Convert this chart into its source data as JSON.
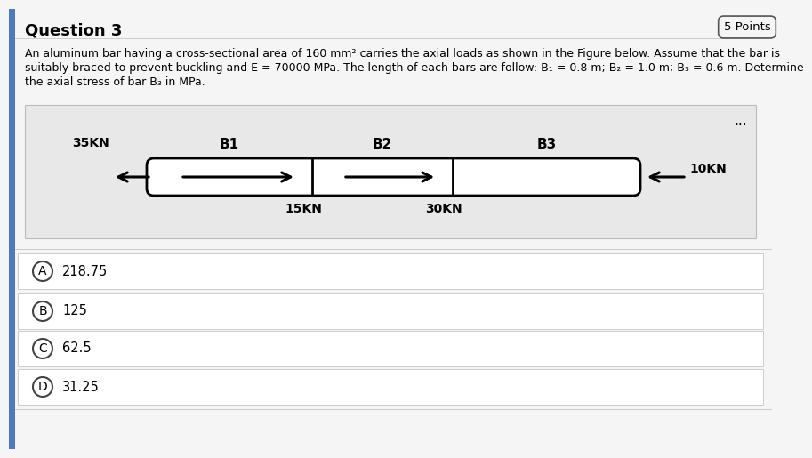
{
  "title": "Question 3",
  "points_label": "5 Points",
  "page_background": "#f5f5f5",
  "diagram_bg": "#e8e8e8",
  "bar_fill": "#ffffff",
  "bar_border": "#000000",
  "text_color": "#000000",
  "title_fontsize": 13,
  "body_fontsize": 9.0,
  "option_fontsize": 10.5,
  "bar_labels": [
    "B1",
    "B2",
    "B3"
  ],
  "force_left": "35KN",
  "force_right": "10KN",
  "force_b1": "15KN",
  "force_b2": "30KN",
  "ellipsis": "...",
  "options": [
    {
      "letter": "A",
      "value": "218.75"
    },
    {
      "letter": "B",
      "value": "125"
    },
    {
      "letter": "C",
      "value": "62.5"
    },
    {
      "letter": "D",
      "value": "31.25"
    }
  ],
  "accent_color": "#4a7abf",
  "desc_line1": "An aluminum bar having a cross-sectional area of 160 mm² carries the axial loads as shown in the Figure below. Assume that the bar is",
  "desc_line2": "suitably braced to prevent buckling and E = 70000 MPa. The length of each bars are follow: B₁ = 0.8 m; B₂ = 1.0 m; B₃ = 0.6 m. Determine",
  "desc_line3": "the axial stress of bar B₃ in MPa."
}
